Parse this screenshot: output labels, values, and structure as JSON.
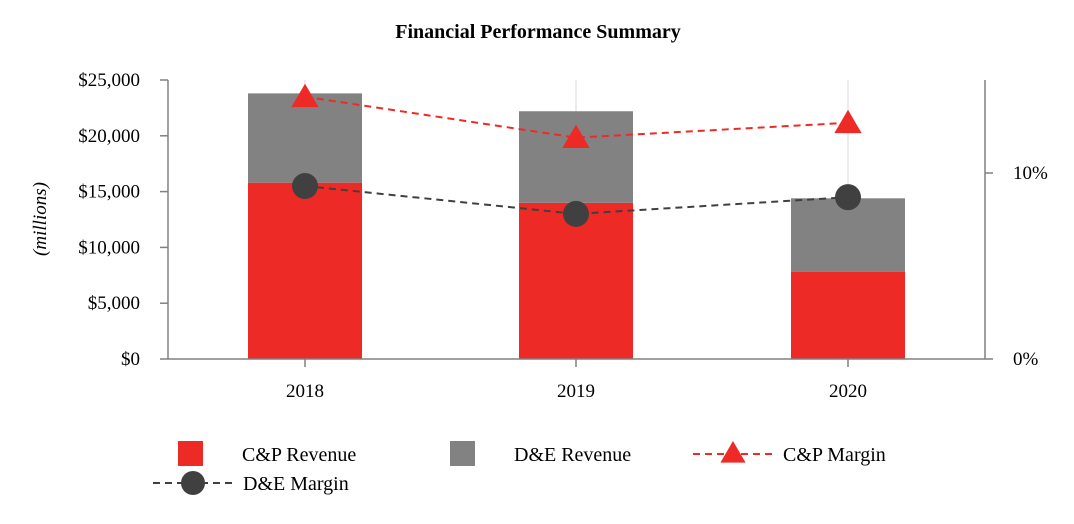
{
  "chart_data": {
    "type": "bar",
    "title": "Financial Performance Summary",
    "ylabel": "(millions)",
    "xlabel": "",
    "categories": [
      "2018",
      "2019",
      "2020"
    ],
    "ylim": [
      0,
      25000
    ],
    "y_ticks": [
      0,
      5000,
      10000,
      15000,
      20000,
      25000
    ],
    "y_tick_labels": [
      "$0",
      "$5,000",
      "$10,000",
      "$15,000",
      "$20,000",
      "$25,000"
    ],
    "y2lim": [
      0,
      15
    ],
    "y2_ticks": [
      0,
      10
    ],
    "y2_tick_labels": [
      "0%",
      "10%"
    ],
    "stacked": true,
    "series": [
      {
        "name": "C&P Revenue",
        "kind": "bar",
        "axis": "left",
        "color": "#ee2a27",
        "values": [
          15800,
          14000,
          7800
        ]
      },
      {
        "name": "D&E Revenue",
        "kind": "bar",
        "axis": "left",
        "color": "#828282",
        "values": [
          8000,
          8200,
          6600
        ]
      },
      {
        "name": "C&P Margin",
        "kind": "line",
        "axis": "right",
        "marker": "triangle",
        "color": "#ee2a27",
        "values": [
          14.1,
          11.9,
          12.7
        ]
      },
      {
        "name": "D&E Margin",
        "kind": "line",
        "axis": "right",
        "marker": "circle",
        "color": "#404040",
        "values": [
          9.3,
          7.8,
          8.7
        ]
      }
    ],
    "legend": {
      "position": "bottom",
      "entries": [
        "C&P Revenue",
        "D&E Revenue",
        "C&P Margin",
        "D&E Margin"
      ]
    }
  }
}
